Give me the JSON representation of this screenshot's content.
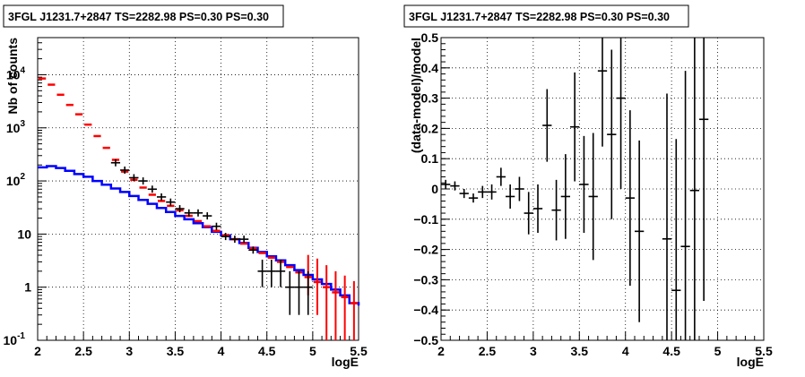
{
  "chart_data": [
    {
      "type": "histogram",
      "title": "3FGL J1231.7+2847 TS=2282.98 PS=0.30 PS=0.30",
      "xlabel": "logE",
      "ylabel": "Nb of counts",
      "xlim": [
        2,
        5.5
      ],
      "ylim": [
        0.1,
        50000
      ],
      "y_scale": "log",
      "grid": true,
      "x_ticks": [
        "2",
        "2.5",
        "3",
        "3.5",
        "4",
        "4.5",
        "5",
        "5.5"
      ],
      "y_ticks": [
        {
          "value": 0.1,
          "base": "10",
          "exp": "-1"
        },
        {
          "value": 1,
          "base": "1",
          "exp": ""
        },
        {
          "value": 10,
          "base": "10",
          "exp": ""
        },
        {
          "value": 100,
          "base": "10",
          "exp": "2"
        },
        {
          "value": 1000,
          "base": "10",
          "exp": "3"
        },
        {
          "value": 10000,
          "base": "10",
          "exp": "4"
        }
      ],
      "bin_edges": [
        2.0,
        2.1,
        2.2,
        2.3,
        2.4,
        2.5,
        2.6,
        2.7,
        2.8,
        2.9,
        3.0,
        3.1,
        3.2,
        3.3,
        3.4,
        3.5,
        3.6,
        3.7,
        3.8,
        3.9,
        4.0,
        4.1,
        4.2,
        4.3,
        4.4,
        4.5,
        4.6,
        4.7,
        4.8,
        4.9,
        5.0,
        5.1,
        5.2,
        5.3,
        5.4,
        5.5
      ],
      "series": [
        {
          "color": "#0000ff",
          "style": "step",
          "values": [
            180,
            190,
            175,
            155,
            135,
            120,
            100,
            85,
            72,
            62,
            52,
            44,
            37,
            31,
            26,
            22,
            19,
            16,
            13.5,
            11,
            9.5,
            8,
            6.8,
            5.5,
            4.6,
            3.8,
            3.2,
            2.6,
            2.1,
            1.7,
            1.4,
            1.15,
            0.9,
            0.7,
            0.5,
            0.45
          ]
        },
        {
          "color": "#ff0000",
          "style": "errorbar",
          "values": [
            8500,
            6500,
            4200,
            2700,
            1800,
            1150,
            700,
            420,
            250,
            150,
            105,
            75,
            55,
            42,
            34,
            28,
            22,
            17.5,
            14,
            11.5,
            9.5,
            8,
            6.6,
            5.4,
            4.4,
            3.6,
            3,
            2.4,
            1.9,
            1.55,
            1.25,
            1,
            0.8,
            0.65,
            0.5
          ],
          "err_lo": [
            0,
            0,
            0,
            0,
            0,
            0,
            0,
            0,
            0,
            0,
            0,
            0,
            0,
            0,
            0,
            0,
            0,
            0,
            0,
            0,
            0,
            0,
            0,
            0,
            0,
            0,
            0,
            0,
            0,
            0.85,
            0.95,
            0.9,
            0.75,
            0.6,
            0.48
          ],
          "err_hi": [
            0,
            0,
            0,
            0,
            0,
            0,
            0,
            0,
            0,
            0,
            0,
            0,
            0,
            0,
            0,
            0,
            0,
            0,
            0,
            0,
            0,
            0,
            0,
            0,
            0,
            0,
            0,
            0,
            0,
            2.5,
            2.2,
            1.6,
            1.2,
            1,
            0.8
          ]
        },
        {
          "color": "#000000",
          "style": "errorbar",
          "x": [
            2.85,
            2.95,
            3.05,
            3.15,
            3.25,
            3.35,
            3.45,
            3.55,
            3.65,
            3.75,
            3.85,
            3.95,
            4.05,
            4.15,
            4.25,
            4.35,
            4.45,
            4.55,
            4.65,
            4.75,
            4.85,
            4.95
          ],
          "values": [
            220,
            160,
            115,
            100,
            70,
            50,
            40,
            30,
            25,
            25,
            22,
            14,
            9,
            8,
            8,
            5,
            2,
            2,
            2,
            1,
            1,
            1
          ],
          "err_lo": [
            0,
            0,
            0,
            0,
            0,
            0,
            0,
            0,
            0,
            0,
            0,
            0,
            0,
            0,
            0,
            0,
            1,
            1,
            1,
            0.7,
            0.7,
            0.7
          ],
          "err_hi": [
            0,
            0,
            0,
            0,
            0,
            0,
            0,
            0,
            0,
            0,
            0,
            0,
            0,
            0,
            0,
            0,
            1.3,
            1.3,
            1.3,
            1,
            1,
            1
          ]
        }
      ]
    },
    {
      "type": "scatter",
      "title": "3FGL J1231.7+2847 TS=2282.98 PS=0.30 PS=0.30",
      "xlabel": "logE",
      "ylabel": "(data-model)/model",
      "xlim": [
        2,
        5.5
      ],
      "ylim": [
        -0.5,
        0.5
      ],
      "grid": true,
      "x_ticks": [
        "2",
        "2.5",
        "3",
        "3.5",
        "4",
        "4.5",
        "5",
        "5.5"
      ],
      "y_ticks": [
        "−0.5",
        "−0.4",
        "−0.3",
        "−0.2",
        "−0.1",
        "0",
        "0.1",
        "0.2",
        "0.3",
        "0.4",
        "0.5"
      ],
      "y_values": [
        -0.5,
        -0.4,
        -0.3,
        -0.2,
        -0.1,
        0,
        0.1,
        0.2,
        0.3,
        0.4,
        0.5
      ],
      "series": [
        {
          "color": "#000000",
          "x": [
            2.05,
            2.15,
            2.25,
            2.35,
            2.45,
            2.55,
            2.65,
            2.75,
            2.85,
            2.95,
            3.05,
            3.15,
            3.25,
            3.35,
            3.45,
            3.55,
            3.65,
            3.75,
            3.85,
            3.95,
            4.05,
            4.15,
            4.45,
            4.55,
            4.65,
            4.75,
            4.85
          ],
          "values": [
            0.015,
            0.01,
            -0.015,
            -0.03,
            -0.01,
            -0.01,
            0.04,
            -0.025,
            0.0,
            -0.08,
            -0.065,
            0.21,
            -0.07,
            -0.025,
            0.205,
            0.015,
            -0.025,
            0.39,
            0.18,
            0.3,
            -0.03,
            -0.14,
            -0.165,
            -0.335,
            -0.19,
            -0.005,
            0.23
          ],
          "err": [
            0.015,
            0.015,
            0.015,
            0.015,
            0.02,
            0.025,
            0.03,
            0.04,
            0.04,
            0.07,
            0.08,
            0.12,
            0.1,
            0.14,
            0.18,
            0.16,
            0.21,
            0.25,
            0.28,
            0.3,
            0.29,
            0.3,
            0.48,
            0.5,
            0.58,
            0.6,
            0.6
          ]
        }
      ]
    }
  ]
}
